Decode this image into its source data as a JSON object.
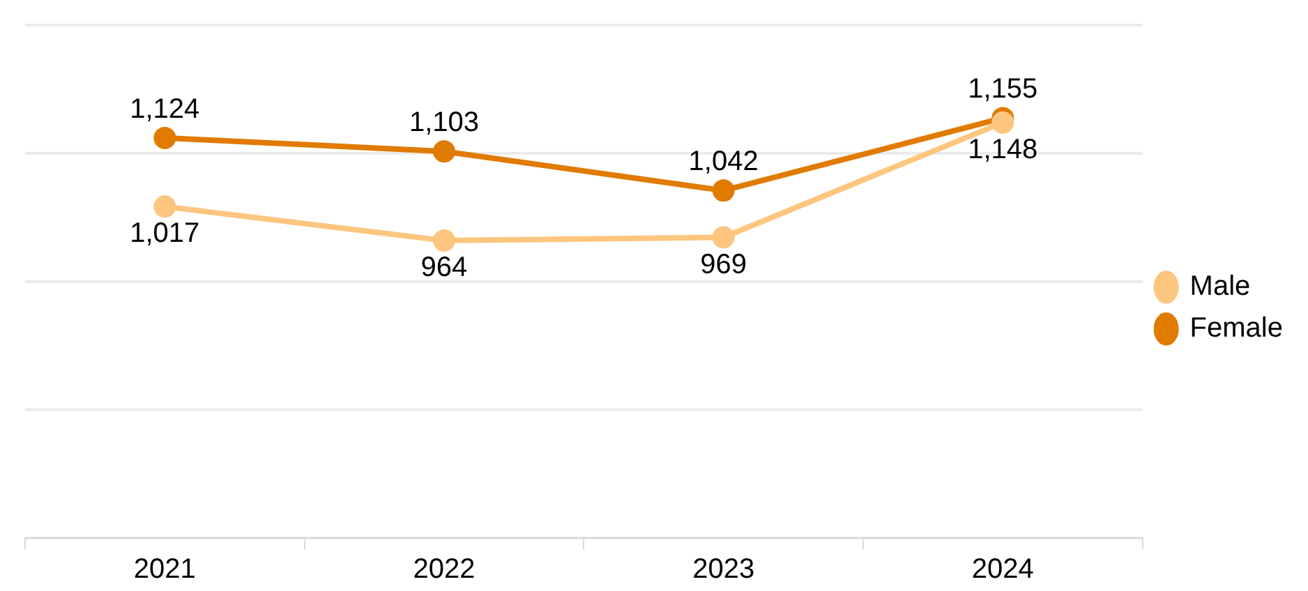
{
  "chart_data": {
    "type": "line",
    "categories": [
      "2021",
      "2022",
      "2023",
      "2024"
    ],
    "series": [
      {
        "name": "Male",
        "color": "#fdc67f",
        "values": [
          1017,
          964,
          969,
          1148
        ],
        "value_labels": [
          "1,017",
          "964",
          "969",
          "1,148"
        ]
      },
      {
        "name": "Female",
        "color": "#e07b00",
        "values": [
          1124,
          1103,
          1042,
          1155
        ],
        "value_labels": [
          "1,124",
          "1,103",
          "1,042",
          "1,155"
        ]
      }
    ],
    "ylim": [
      500,
      1300
    ],
    "yticks": [
      {
        "value": 500,
        "label": null
      },
      {
        "value": 700,
        "label": null
      },
      {
        "value": 900,
        "label": null
      },
      {
        "value": 1100,
        "label": null
      },
      {
        "value": 1300,
        "label": null
      }
    ],
    "tick_labels": "x",
    "grid": "y",
    "legend": "right",
    "marker": "circle",
    "line_style": "solid"
  }
}
